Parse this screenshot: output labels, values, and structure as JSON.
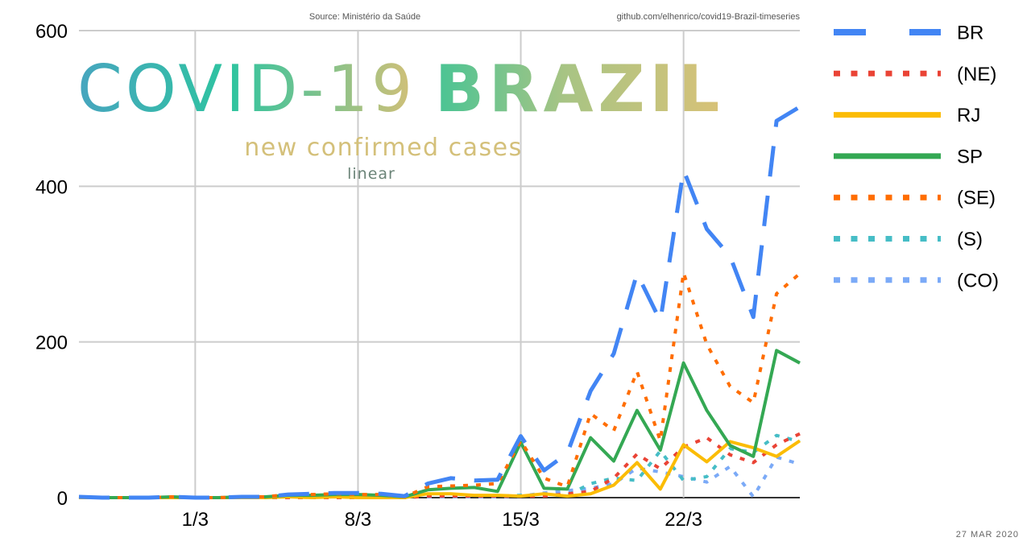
{
  "header": {
    "source": "Source: Ministério da Saúde",
    "repo": "github.com/elhenrico/covid19-Brazil-timeseries",
    "date": "27 MAR 2020"
  },
  "title": {
    "part1": "COVID-19",
    "part2": "BRAZIL",
    "subtitle": "new confirmed cases",
    "scale": "linear"
  },
  "colors": {
    "BR": "#4285f4",
    "NE": "#ea4335",
    "RJ": "#fbbc04",
    "SP": "#34a853",
    "SE": "#ff6d01",
    "S": "#46bdc6",
    "CO": "#7baaf7",
    "title_left": "#47a5bf",
    "title_mid": "#2ec4a0",
    "title_right": "#d4c077",
    "subtitle": "#d4c07a",
    "scale": "#6b8478"
  },
  "chart_data": {
    "type": "line",
    "title": "COVID-19 BRAZIL",
    "subtitle": "new confirmed cases",
    "x": [
      "25/2",
      "26/2",
      "27/2",
      "28/2",
      "29/2",
      "1/3",
      "2/3",
      "3/3",
      "4/3",
      "5/3",
      "6/3",
      "7/3",
      "8/3",
      "9/3",
      "10/3",
      "11/3",
      "12/3",
      "13/3",
      "14/3",
      "15/3",
      "16/3",
      "17/3",
      "18/3",
      "19/3",
      "20/3",
      "21/3",
      "22/3",
      "23/3",
      "24/3",
      "25/3",
      "26/3",
      "27/3"
    ],
    "x_ticks": [
      "1/3",
      "8/3",
      "15/3",
      "22/3"
    ],
    "ylim": [
      0,
      600
    ],
    "y_ticks": [
      0,
      200,
      400,
      600
    ],
    "grid": true,
    "legend_position": "right",
    "series": [
      {
        "name": "BR",
        "dash": "long-dash",
        "width": 5,
        "values": [
          1,
          0,
          0,
          0,
          1,
          0,
          0,
          1,
          1,
          4,
          5,
          6,
          6,
          5,
          2,
          18,
          25,
          22,
          23,
          79,
          35,
          57,
          137,
          185,
          288,
          227,
          421,
          345,
          310,
          232,
          484,
          502
        ]
      },
      {
        "name": "(NE)",
        "dash": "dot",
        "width": 4,
        "values": [
          0,
          0,
          0,
          0,
          0,
          0,
          0,
          0,
          0,
          0,
          0,
          0,
          0,
          1,
          0,
          2,
          2,
          2,
          2,
          2,
          2,
          5,
          8,
          25,
          56,
          37,
          65,
          77,
          55,
          45,
          68,
          82
        ]
      },
      {
        "name": "RJ",
        "dash": "solid",
        "width": 4,
        "values": [
          0,
          0,
          0,
          0,
          0,
          0,
          0,
          0,
          0,
          1,
          0,
          1,
          0,
          0,
          0,
          5,
          5,
          3,
          3,
          2,
          5,
          2,
          5,
          16,
          45,
          11,
          68,
          46,
          72,
          64,
          53,
          73
        ]
      },
      {
        "name": "SP",
        "dash": "solid",
        "width": 4,
        "values": [
          1,
          0,
          0,
          0,
          1,
          0,
          0,
          1,
          1,
          3,
          3,
          4,
          4,
          3,
          1,
          10,
          12,
          13,
          8,
          71,
          12,
          11,
          77,
          47,
          112,
          61,
          173,
          112,
          67,
          53,
          189,
          173
        ]
      },
      {
        "name": "(SE)",
        "dash": "dot",
        "width": 4,
        "values": [
          1,
          0,
          0,
          0,
          1,
          0,
          0,
          1,
          1,
          4,
          4,
          5,
          4,
          4,
          1,
          14,
          15,
          16,
          18,
          73,
          25,
          14,
          108,
          86,
          162,
          73,
          289,
          197,
          143,
          122,
          262,
          288
        ]
      },
      {
        "name": "(S)",
        "dash": "dot",
        "width": 4,
        "values": [
          0,
          0,
          0,
          0,
          0,
          0,
          0,
          0,
          0,
          0,
          0,
          0,
          0,
          0,
          0,
          2,
          2,
          2,
          2,
          3,
          3,
          3,
          18,
          25,
          22,
          60,
          22,
          27,
          63,
          58,
          80,
          72
        ]
      },
      {
        "name": "(CO)",
        "dash": "dot",
        "width": 4,
        "values": [
          0,
          0,
          0,
          0,
          0,
          0,
          0,
          0,
          0,
          0,
          0,
          0,
          0,
          0,
          1,
          1,
          1,
          1,
          1,
          2,
          6,
          9,
          12,
          18,
          38,
          33,
          27,
          20,
          40,
          1,
          52,
          43
        ]
      }
    ]
  }
}
